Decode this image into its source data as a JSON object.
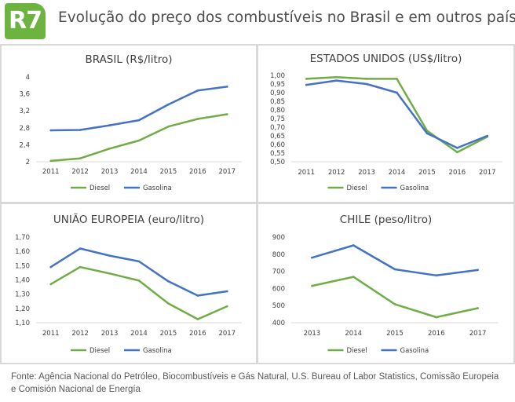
{
  "header": {
    "logo_text": "R7",
    "title": "Evolução do preço dos combustíveis no Brasil e em outros países"
  },
  "colors": {
    "diesel": "#70ad47",
    "gasolina": "#4472c4",
    "brand": "#6db33f"
  },
  "source": "Fonte: Agência Nacional do Petróleo, Biocombustíveis e Gás Natural, U.S. Bureau of Labor Statistics, Comissão Europeia e Comisión Nacional de Energía",
  "chart_data": [
    {
      "type": "line",
      "title": "BRASIL (R$/litro)",
      "categories": [
        "2011",
        "2012",
        "2013",
        "2014",
        "2015",
        "2016",
        "2017"
      ],
      "yticks": [
        "2",
        "2,4",
        "2,8",
        "3,2",
        "3,6",
        "4"
      ],
      "ylim": [
        2,
        4
      ],
      "legend": "bottom",
      "grid": false,
      "series": [
        {
          "name": "Diesel",
          "values": [
            2.02,
            2.08,
            2.31,
            2.5,
            2.83,
            3.01,
            3.12
          ]
        },
        {
          "name": "Gasolina",
          "values": [
            2.74,
            2.75,
            2.86,
            2.98,
            3.35,
            3.68,
            3.77
          ]
        }
      ]
    },
    {
      "type": "line",
      "title": "ESTADOS UNIDOS (US$/litro)",
      "categories": [
        "2011",
        "2012",
        "2013",
        "2014",
        "2015",
        "2016",
        "2017"
      ],
      "yticks": [
        "0,50",
        "0,55",
        "0,60",
        "0,65",
        "0,70",
        "0,75",
        "0,80",
        "0,85",
        "0,90",
        "0,95",
        "1,00"
      ],
      "ylim": [
        0.5,
        1.0
      ],
      "legend": "bottom",
      "grid": false,
      "series": [
        {
          "name": "Diesel",
          "values": [
            0.98,
            0.99,
            0.98,
            0.98,
            0.68,
            0.555,
            0.645
          ]
        },
        {
          "name": "Gasolina",
          "values": [
            0.945,
            0.97,
            0.95,
            0.9,
            0.665,
            0.58,
            0.65
          ]
        }
      ]
    },
    {
      "type": "line",
      "title": "UNIÃO EUROPEIA (euro/litro)",
      "categories": [
        "2011",
        "2012",
        "2013",
        "2014",
        "2015",
        "2016",
        "2017"
      ],
      "yticks": [
        "1,10",
        "1,20",
        "1,30",
        "1,40",
        "1,50",
        "1,60",
        "1,70"
      ],
      "ylim": [
        1.1,
        1.7
      ],
      "legend": "bottom",
      "grid": false,
      "series": [
        {
          "name": "Diesel",
          "values": [
            1.37,
            1.49,
            1.445,
            1.395,
            1.235,
            1.125,
            1.215
          ]
        },
        {
          "name": "Gasolina",
          "values": [
            1.49,
            1.62,
            1.57,
            1.53,
            1.39,
            1.29,
            1.32
          ]
        }
      ]
    },
    {
      "type": "line",
      "title": "CHILE (peso/litro)",
      "categories": [
        "2013",
        "2014",
        "2015",
        "2016",
        "2017"
      ],
      "yticks": [
        "400",
        "500",
        "600",
        "700",
        "800",
        "900"
      ],
      "ylim": [
        400,
        900
      ],
      "legend": "bottom",
      "grid": false,
      "series": [
        {
          "name": "Diesel",
          "values": [
            615,
            668,
            508,
            432,
            485
          ]
        },
        {
          "name": "Gasolina",
          "values": [
            780,
            852,
            712,
            676,
            708
          ]
        }
      ]
    }
  ]
}
